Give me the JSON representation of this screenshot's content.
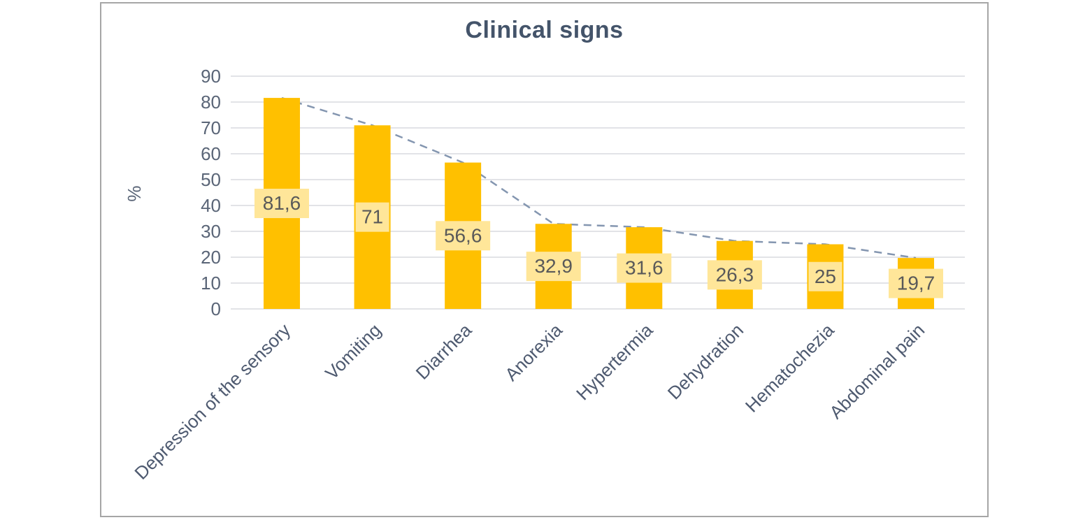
{
  "chart_data": {
    "type": "bar",
    "title": "Clinical signs",
    "xlabel": "",
    "ylabel": "%",
    "ylim": [
      0,
      90
    ],
    "ytick_step": 10,
    "grid": true,
    "legend": "none",
    "categories": [
      "Depression of the sensory",
      "Vomiting",
      "Diarrhea",
      "Anorexia",
      "Hypertermia",
      "Dehydration",
      "Hematochezia",
      "Abdominal pain"
    ],
    "values": [
      81.6,
      71,
      56.6,
      32.9,
      31.6,
      26.3,
      25,
      19.7
    ],
    "value_labels": [
      "81,6",
      "71",
      "56,6",
      "32,9",
      "31,6",
      "26,3",
      "25",
      "19,7"
    ],
    "trend_line": {
      "style": "dashed",
      "values": [
        81.6,
        71,
        56.6,
        32.9,
        31.6,
        26.3,
        25,
        19.7
      ]
    }
  },
  "colors": {
    "bar": "#FFC000",
    "value_label_bg": "#FFE699",
    "value_label_text": "#595959",
    "title_text": "#44546A",
    "axis_text": "#5A6577",
    "category_text": "#4E5A70",
    "gridline": "#E2E3E7",
    "trend_line": "#8496B0",
    "frame_border": "#A6A6A6",
    "background": "#FFFFFF"
  }
}
